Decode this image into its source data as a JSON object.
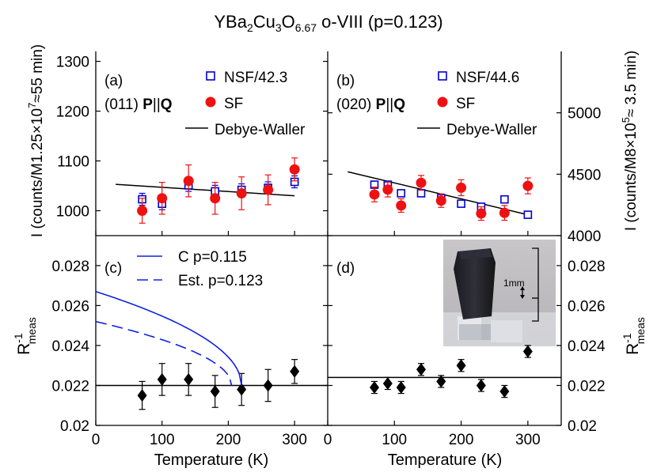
{
  "title": {
    "prefix": "YBa",
    "s1": "2",
    "m1": "Cu",
    "s2": "3",
    "m2": "O",
    "s3": "6.67",
    "suffix": " o-VIII (p=0.123)"
  },
  "colors": {
    "nsf": "#0000cc",
    "sf": "#ee1111",
    "fit": "#000000",
    "model": "#1122dd",
    "rmeas": "#000000"
  },
  "axes": {
    "xlabel": "Temperature (K)",
    "left_top_ylabel": {
      "a": "I (counts/M1.25×10",
      "sup": "7",
      "b": "≈55 min)"
    },
    "right_top_ylabel": {
      "a": "I (counts/M8×10",
      "sup": "5",
      "b": "≈ 3.5 min)"
    },
    "rmeas_ylabel": {
      "base": "R",
      "sup": "-1",
      "sub": "meas"
    },
    "x_ticks": [
      "0",
      "100",
      "200",
      "300"
    ]
  },
  "chart_data": [
    {
      "panel": "a",
      "type": "scatter",
      "label": "(a)",
      "reflection": "(011)",
      "polarization": {
        "P": "P",
        "sep": "||",
        "Q": "Q"
      },
      "xlim": [
        0,
        350
      ],
      "ylim": [
        950,
        1320
      ],
      "y_ticks": [
        "1000",
        "1100",
        "1200",
        "1300"
      ],
      "legend": {
        "nsf": "NSF/42.3",
        "sf": "SF",
        "fit": "Debye-Waller"
      },
      "nsf": [
        {
          "x": 70,
          "y": 1023,
          "err": 12
        },
        {
          "x": 100,
          "y": 1014,
          "err": 12
        },
        {
          "x": 140,
          "y": 1051,
          "err": 12
        },
        {
          "x": 180,
          "y": 1039,
          "err": 12
        },
        {
          "x": 220,
          "y": 1042,
          "err": 12
        },
        {
          "x": 260,
          "y": 1046,
          "err": 12
        },
        {
          "x": 300,
          "y": 1058,
          "err": 12
        }
      ],
      "sf": [
        {
          "x": 70,
          "y": 1000,
          "err": 25
        },
        {
          "x": 100,
          "y": 1025,
          "err": 32
        },
        {
          "x": 140,
          "y": 1060,
          "err": 32
        },
        {
          "x": 180,
          "y": 1025,
          "err": 32
        },
        {
          "x": 220,
          "y": 1035,
          "err": 33
        },
        {
          "x": 260,
          "y": 1042,
          "err": 30
        },
        {
          "x": 300,
          "y": 1083,
          "err": 23
        }
      ],
      "fit": {
        "x": [
          30,
          300
        ],
        "y": [
          1053,
          1030
        ]
      }
    },
    {
      "panel": "b",
      "type": "scatter",
      "label": "(b)",
      "reflection": "(020)",
      "polarization": {
        "P": "P",
        "sep": "||",
        "Q": "Q"
      },
      "xlim": [
        0,
        350
      ],
      "ylim": [
        4000,
        5500
      ],
      "y_ticks": [
        "4000",
        "4500",
        "5000"
      ],
      "legend": {
        "nsf": "NSF/44.6",
        "sf": "SF",
        "fit": "Debye-Waller"
      },
      "nsf": [
        {
          "x": 70,
          "y": 4415,
          "err": 15
        },
        {
          "x": 90,
          "y": 4415,
          "err": 15
        },
        {
          "x": 110,
          "y": 4345,
          "err": 15
        },
        {
          "x": 140,
          "y": 4345,
          "err": 15
        },
        {
          "x": 170,
          "y": 4305,
          "err": 15
        },
        {
          "x": 200,
          "y": 4260,
          "err": 15
        },
        {
          "x": 230,
          "y": 4235,
          "err": 15
        },
        {
          "x": 265,
          "y": 4295,
          "err": 15
        },
        {
          "x": 300,
          "y": 4170,
          "err": 15
        }
      ],
      "sf": [
        {
          "x": 70,
          "y": 4335,
          "err": 60
        },
        {
          "x": 90,
          "y": 4375,
          "err": 60
        },
        {
          "x": 110,
          "y": 4245,
          "err": 55
        },
        {
          "x": 140,
          "y": 4430,
          "err": 60
        },
        {
          "x": 170,
          "y": 4285,
          "err": 55
        },
        {
          "x": 200,
          "y": 4390,
          "err": 65
        },
        {
          "x": 230,
          "y": 4180,
          "err": 55
        },
        {
          "x": 265,
          "y": 4185,
          "err": 60
        },
        {
          "x": 300,
          "y": 4405,
          "err": 65
        }
      ],
      "fit": {
        "x": [
          30,
          300
        ],
        "y": [
          4520,
          4170
        ]
      }
    },
    {
      "panel": "c",
      "type": "line",
      "label": "(c)",
      "xlim": [
        0,
        350
      ],
      "ylim": [
        0.02,
        0.0295
      ],
      "y_ticks": [
        "0.02",
        "0.022",
        "0.024",
        "0.026",
        "0.028"
      ],
      "legend": {
        "solid": "C p=0.115",
        "dashed": "Est. p=0.123"
      },
      "points": [
        {
          "x": 70,
          "y": 0.0215,
          "err": 0.0007
        },
        {
          "x": 100,
          "y": 0.0223,
          "err": 0.0008
        },
        {
          "x": 140,
          "y": 0.0223,
          "err": 0.0008
        },
        {
          "x": 180,
          "y": 0.0217,
          "err": 0.0008
        },
        {
          "x": 220,
          "y": 0.0218,
          "err": 0.0008
        },
        {
          "x": 260,
          "y": 0.022,
          "err": 0.0008
        },
        {
          "x": 300,
          "y": 0.0227,
          "err": 0.0006
        }
      ],
      "baseline": 0.022,
      "model_solid": {
        "Tc": 220,
        "y0": 0.0267,
        "base": 0.022
      },
      "model_dashed": {
        "Tc": 205,
        "y0": 0.0252,
        "base": 0.022
      }
    },
    {
      "panel": "d",
      "type": "scatter",
      "label": "(d)",
      "xlim": [
        0,
        350
      ],
      "ylim": [
        0.02,
        0.0295
      ],
      "y_ticks": [
        "0.02",
        "0.022",
        "0.024",
        "0.026",
        "0.028"
      ],
      "points": [
        {
          "x": 70,
          "y": 0.0219,
          "err": 0.0003
        },
        {
          "x": 90,
          "y": 0.0221,
          "err": 0.0003
        },
        {
          "x": 110,
          "y": 0.0219,
          "err": 0.0003
        },
        {
          "x": 140,
          "y": 0.0228,
          "err": 0.0003
        },
        {
          "x": 170,
          "y": 0.0222,
          "err": 0.0003
        },
        {
          "x": 200,
          "y": 0.023,
          "err": 0.0003
        },
        {
          "x": 230,
          "y": 0.022,
          "err": 0.0003
        },
        {
          "x": 265,
          "y": 0.0217,
          "err": 0.0003
        },
        {
          "x": 300,
          "y": 0.0237,
          "err": 0.0003
        }
      ],
      "baseline": 0.0224,
      "inset": {
        "scale_label": "1mm"
      }
    }
  ]
}
